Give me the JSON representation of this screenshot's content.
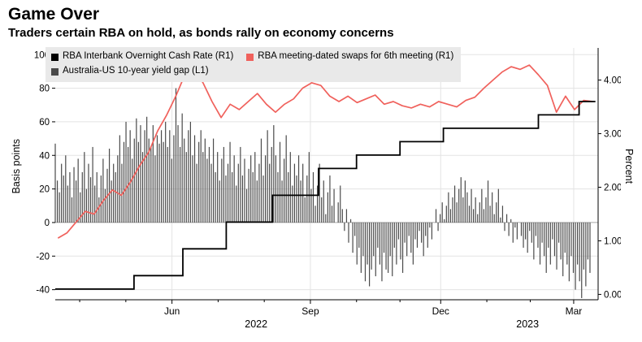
{
  "header": {
    "title": "Game Over",
    "subtitle": "Traders certain RBA on hold, as bonds rally on economy concerns"
  },
  "chart_data": {
    "type": "mixed",
    "title": "Game Over",
    "subtitle": "Traders certain RBA on hold, as bonds rally on economy concerns",
    "grid": true,
    "legend_position": "top-left",
    "left_axis": {
      "label": "Basis points",
      "lim": [
        -46,
        104
      ],
      "ticks": [
        100,
        80,
        60,
        40,
        20,
        0,
        -20,
        -40
      ]
    },
    "right_axis": {
      "label": "Percent",
      "lim": [
        -0.1,
        4.6
      ],
      "ticks": [
        4.0,
        3.0,
        2.0,
        1.0,
        0.0
      ],
      "tick_labels": [
        "4.00",
        "3.00",
        "2.00",
        "1.00",
        "0.00"
      ]
    },
    "x_axis": {
      "major_ticks": [
        {
          "f": 0.215,
          "label": "Jun"
        },
        {
          "f": 0.47,
          "label": "Sep"
        },
        {
          "f": 0.71,
          "label": "Dec"
        },
        {
          "f": 0.955,
          "label": "Mar"
        }
      ],
      "minor_ticks": [
        0.045,
        0.13,
        0.3,
        0.385,
        0.555,
        0.635,
        0.795,
        0.875
      ],
      "year_labels": [
        {
          "f": 0.37,
          "label": "2022"
        },
        {
          "f": 0.87,
          "label": "2023"
        }
      ]
    },
    "series": [
      {
        "name": "RBA Interbank Overnight Cash Rate (R1)",
        "type": "step",
        "axis": "right",
        "color": "#000000",
        "points": [
          [
            0.0,
            0.1
          ],
          [
            0.145,
            0.35
          ],
          [
            0.235,
            0.85
          ],
          [
            0.315,
            1.35
          ],
          [
            0.4,
            1.85
          ],
          [
            0.485,
            2.35
          ],
          [
            0.555,
            2.6
          ],
          [
            0.635,
            2.85
          ],
          [
            0.715,
            3.1
          ],
          [
            0.89,
            3.35
          ],
          [
            0.965,
            3.6
          ],
          [
            0.995,
            3.6
          ]
        ]
      },
      {
        "name": "RBA meeting-dated swaps for 6th meeting (R1)",
        "type": "line",
        "axis": "right",
        "color": "#f0615c",
        "xrange": [
          0.005,
          0.99
        ],
        "values": [
          1.05,
          1.15,
          1.35,
          1.55,
          1.5,
          1.75,
          1.95,
          1.85,
          2.1,
          2.4,
          2.65,
          3.05,
          3.35,
          3.7,
          4.1,
          4.2,
          3.95,
          3.6,
          3.3,
          3.55,
          3.45,
          3.6,
          3.75,
          3.55,
          3.4,
          3.55,
          3.65,
          3.85,
          3.95,
          3.9,
          3.7,
          3.6,
          3.7,
          3.58,
          3.65,
          3.72,
          3.55,
          3.6,
          3.52,
          3.48,
          3.55,
          3.5,
          3.6,
          3.55,
          3.5,
          3.62,
          3.68,
          3.85,
          4.0,
          4.15,
          4.25,
          4.2,
          4.28,
          4.1,
          3.9,
          3.4,
          3.7,
          3.45,
          3.62,
          3.6
        ]
      },
      {
        "name": "Australia-US 10-year yield gap (L1)",
        "type": "bar",
        "axis": "left",
        "color": "#4a4a4a",
        "xrange": [
          0.0,
          0.985
        ],
        "values": [
          47,
          25,
          18,
          35,
          28,
          40,
          22,
          30,
          15,
          33,
          25,
          38,
          18,
          30,
          42,
          20,
          35,
          27,
          45,
          22,
          30,
          15,
          28,
          38,
          20,
          32,
          44,
          25,
          35,
          30,
          40,
          52,
          35,
          48,
          60,
          45,
          55,
          38,
          50,
          62,
          48,
          58,
          42,
          55,
          63,
          50,
          45,
          58,
          40,
          52,
          47,
          55,
          48,
          60,
          45,
          55,
          38,
          52,
          80,
          58,
          45,
          65,
          50,
          42,
          55,
          60,
          40,
          52,
          35,
          48,
          55,
          42,
          50,
          38,
          45,
          35,
          50,
          30,
          42,
          25,
          38,
          45,
          28,
          35,
          48,
          30,
          40,
          22,
          35,
          45,
          28,
          38,
          20,
          32,
          40,
          30,
          42,
          25,
          35,
          50,
          28,
          40,
          55,
          35,
          45,
          58,
          40,
          30,
          48,
          25,
          38,
          52,
          30,
          42,
          22,
          35,
          28,
          40,
          25,
          35,
          15,
          28,
          42,
          20,
          30,
          10,
          22,
          35,
          15,
          25,
          5,
          18,
          28,
          10,
          20,
          0,
          12,
          22,
          8,
          -5,
          8,
          -12,
          2,
          -18,
          -8,
          -25,
          -15,
          -30,
          -20,
          -35,
          -25,
          -38,
          -28,
          -20,
          -32,
          -15,
          -25,
          -35,
          -18,
          -28,
          -30,
          -20,
          -32,
          -15,
          -25,
          -10,
          -22,
          -30,
          -12,
          -20,
          -8,
          -18,
          -25,
          -10,
          -15,
          -5,
          -12,
          -20,
          -8,
          -15,
          -3,
          -10,
          0,
          8,
          -5,
          5,
          12,
          2,
          10,
          18,
          8,
          15,
          22,
          12,
          20,
          27,
          15,
          25,
          18,
          10,
          20,
          8,
          15,
          5,
          12,
          20,
          8,
          15,
          25,
          10,
          18,
          5,
          12,
          20,
          3,
          10,
          -5,
          5,
          -8,
          2,
          -12,
          -3,
          -10,
          0,
          -8,
          -15,
          -10,
          -18,
          -5,
          -12,
          -22,
          -8,
          -15,
          -25,
          -12,
          -20,
          -30,
          -15,
          -25,
          -10,
          -20,
          -28,
          -12,
          -22,
          -32,
          -18,
          -25,
          -35,
          -20,
          -30,
          -40,
          -25,
          -35,
          -45,
          -28,
          -38,
          -22,
          -30
        ]
      }
    ]
  }
}
